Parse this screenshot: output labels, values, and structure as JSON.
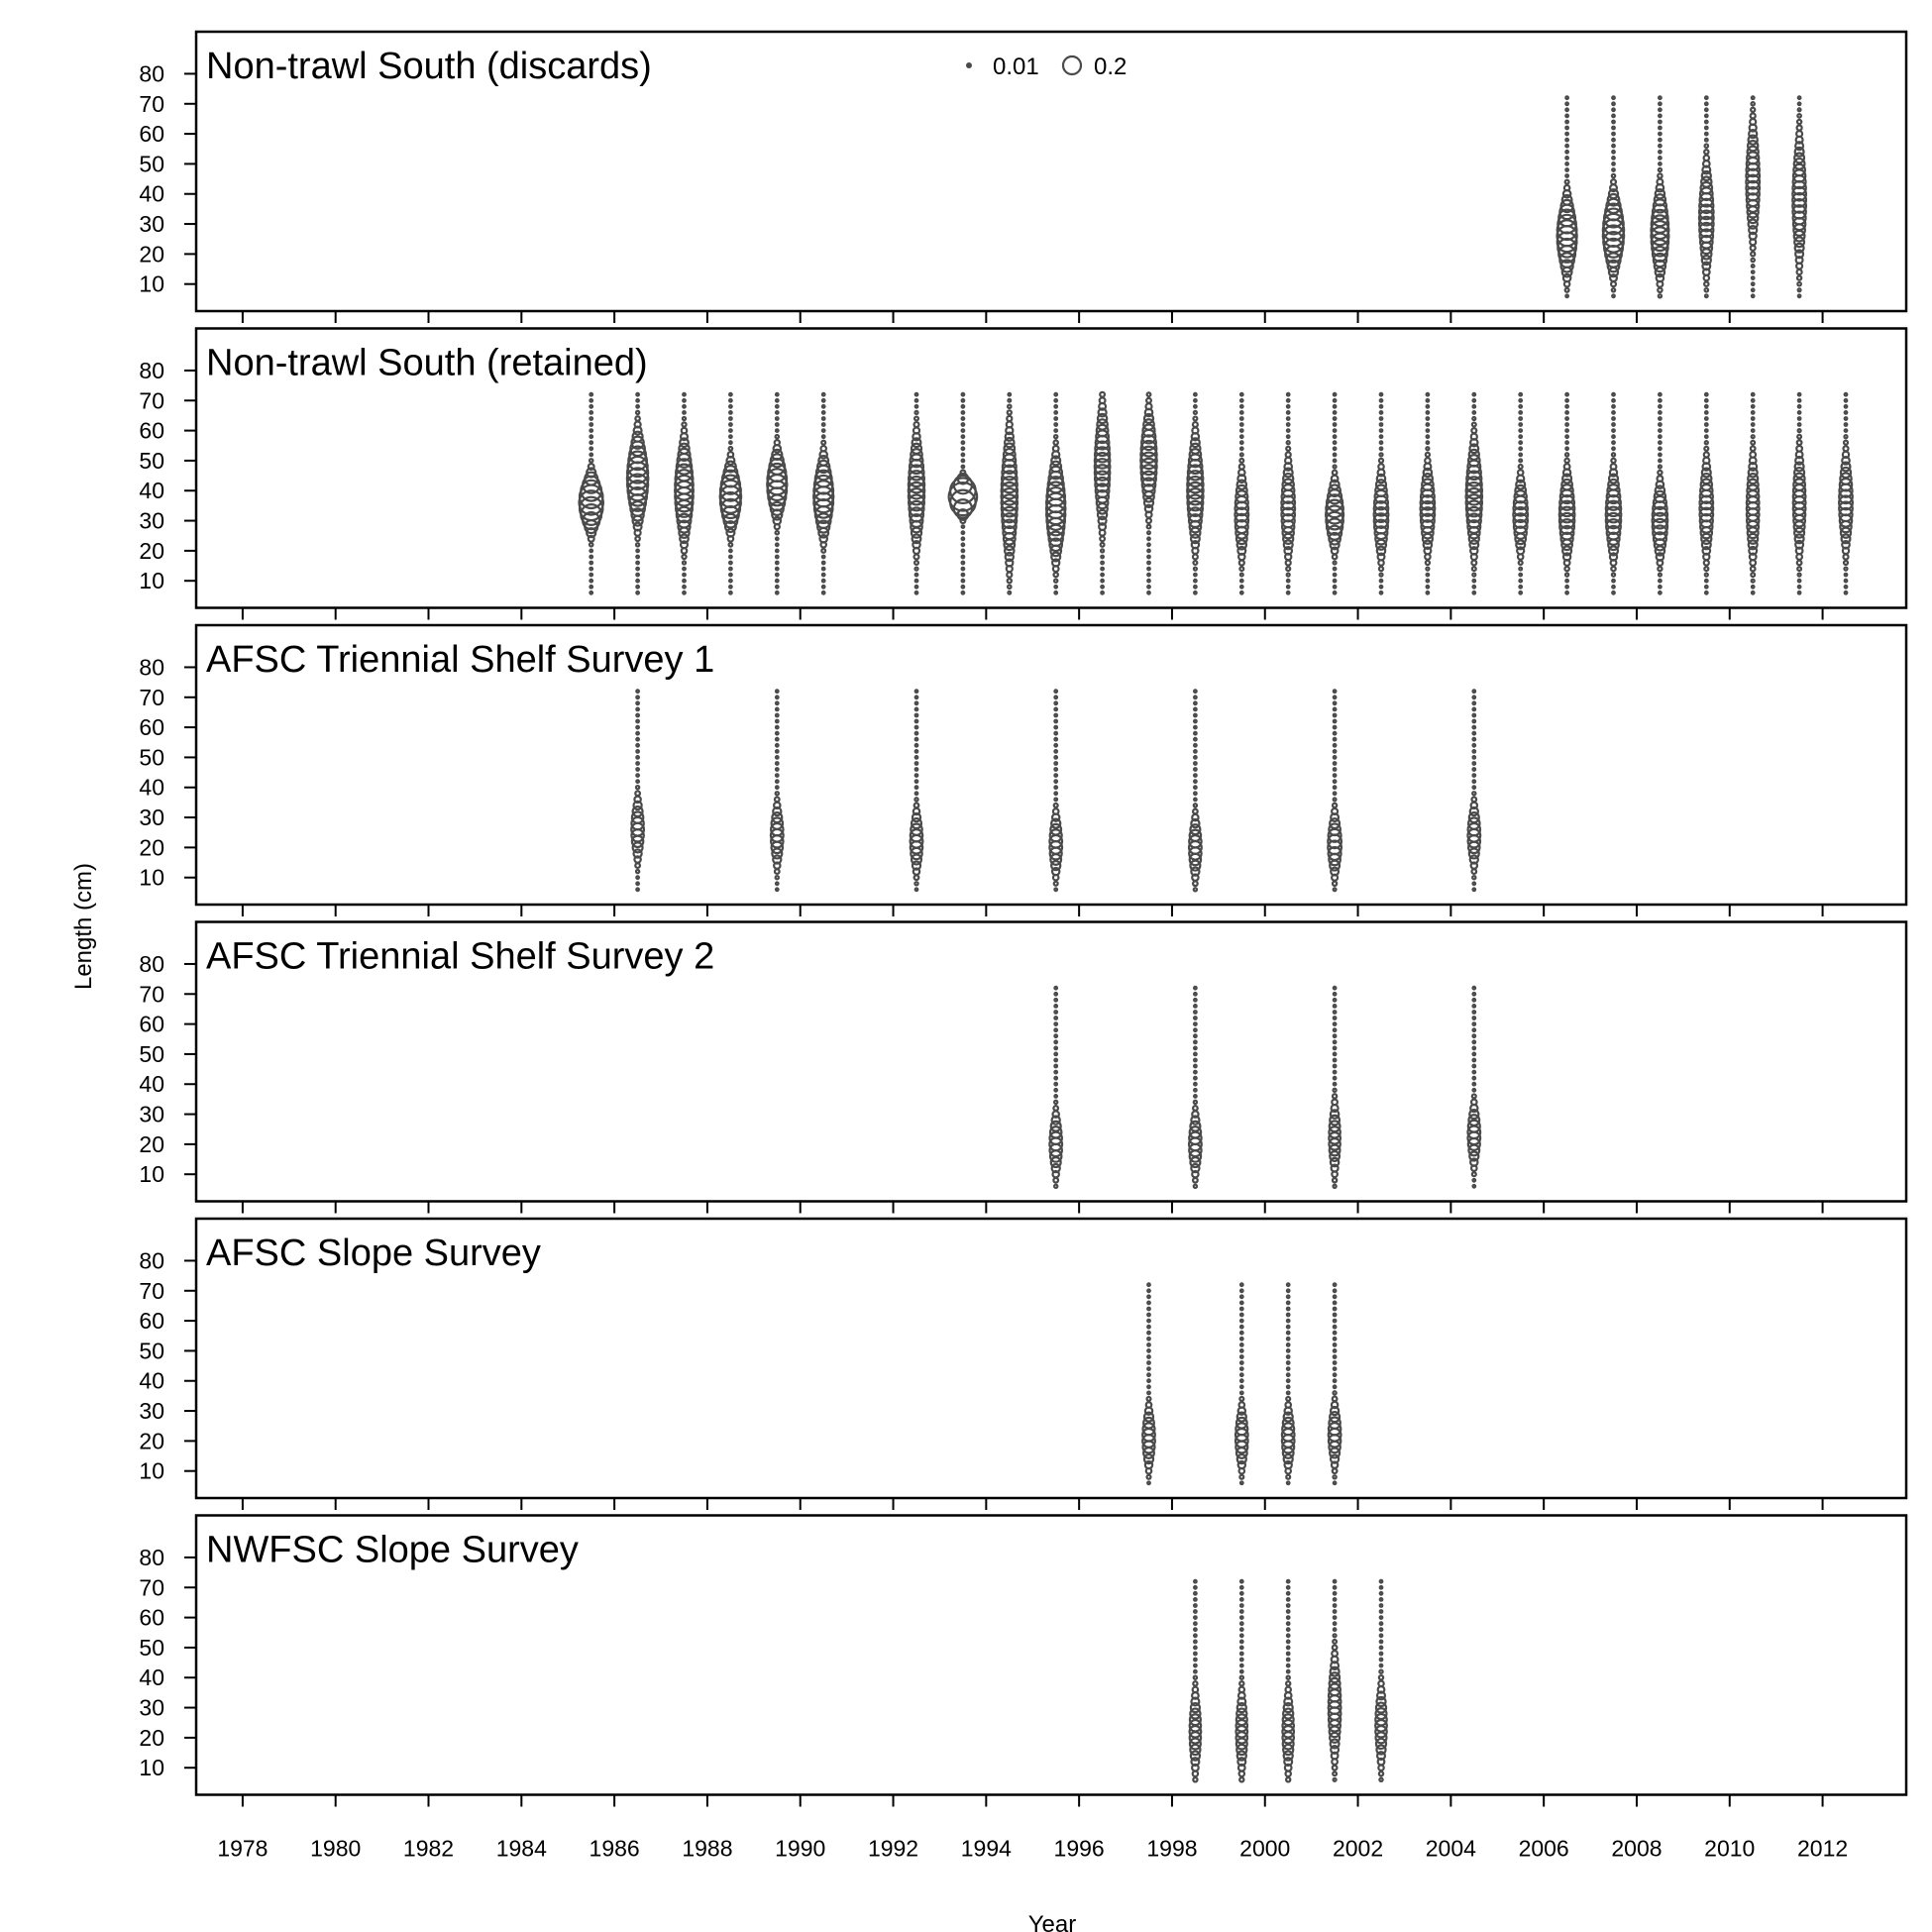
{
  "chart_data": {
    "type": "scatter",
    "subtype": "bubble",
    "xlabel": "Year",
    "ylabel": "Length (cm)",
    "x_ticks": [
      1978,
      1980,
      1982,
      1984,
      1986,
      1988,
      1990,
      1992,
      1994,
      1996,
      1998,
      2000,
      2002,
      2004,
      2006,
      2008,
      2010,
      2012
    ],
    "xlim": [
      1977,
      2013.8
    ],
    "y_ticks": [
      10,
      20,
      30,
      40,
      50,
      60,
      70,
      80
    ],
    "ylim": [
      1,
      94
    ],
    "length_bins": [
      6,
      72
    ],
    "legend": {
      "labels": [
        "0.01",
        "0.2"
      ],
      "values": [
        0.01,
        0.2
      ],
      "position": "top-center"
    },
    "bubble_color": "#4a4a4a",
    "panels": [
      {
        "title": "Non-trawl South (discards)",
        "years": [
          2006,
          2007,
          2008,
          2009,
          2010,
          2011
        ],
        "modes": [
          [
            26,
            7,
            0.15
          ],
          [
            27,
            7,
            0.17
          ],
          [
            27,
            8,
            0.12
          ],
          [
            32,
            10,
            0.08
          ],
          [
            44,
            11,
            0.07
          ],
          [
            38,
            12,
            0.07
          ]
        ]
      },
      {
        "title": "Non-trawl South (retained)",
        "years": [
          1985,
          1986,
          1987,
          1988,
          1989,
          1990,
          1992,
          1993,
          1994,
          1995,
          1996,
          1997,
          1998,
          1999,
          2000,
          2001,
          2002,
          2003,
          2004,
          2005,
          2006,
          2007,
          2008,
          2009,
          2010,
          2011,
          2012
        ],
        "modes": [
          [
            36,
            5,
            0.22
          ],
          [
            44,
            8,
            0.17
          ],
          [
            40,
            9,
            0.13
          ],
          [
            38,
            6,
            0.17
          ],
          [
            42,
            6,
            0.15
          ],
          [
            38,
            7,
            0.15
          ],
          [
            40,
            10,
            0.1
          ],
          [
            38,
            3,
            0.3
          ],
          [
            38,
            12,
            0.1
          ],
          [
            34,
            9,
            0.14
          ],
          [
            48,
            11,
            0.09
          ],
          [
            50,
            9,
            0.1
          ],
          [
            40,
            10,
            0.1
          ],
          [
            32,
            8,
            0.07
          ],
          [
            34,
            9,
            0.07
          ],
          [
            32,
            6,
            0.12
          ],
          [
            32,
            8,
            0.08
          ],
          [
            34,
            8,
            0.08
          ],
          [
            38,
            10,
            0.1
          ],
          [
            32,
            7,
            0.08
          ],
          [
            32,
            8,
            0.09
          ],
          [
            32,
            8,
            0.09
          ],
          [
            30,
            7,
            0.09
          ],
          [
            34,
            9,
            0.07
          ],
          [
            34,
            10,
            0.06
          ],
          [
            36,
            10,
            0.06
          ],
          [
            36,
            9,
            0.07
          ]
        ]
      },
      {
        "title": "AFSC Triennial Shelf Survey 1",
        "years": [
          1986,
          1989,
          1992,
          1995,
          1998,
          2001,
          2004
        ],
        "modes": [
          [
            26,
            6,
            0.06
          ],
          [
            24,
            6,
            0.06
          ],
          [
            22,
            6,
            0.06
          ],
          [
            21,
            6,
            0.06
          ],
          [
            20,
            6,
            0.06
          ],
          [
            21,
            6,
            0.07
          ],
          [
            24,
            6,
            0.06
          ]
        ]
      },
      {
        "title": "AFSC Triennial Shelf Survey 2",
        "years": [
          1995,
          1998,
          2001,
          2004
        ],
        "modes": [
          [
            20,
            6,
            0.06
          ],
          [
            20,
            6,
            0.06
          ],
          [
            22,
            7,
            0.05
          ],
          [
            23,
            6,
            0.06
          ]
        ]
      },
      {
        "title": "AFSC Slope Survey",
        "years": [
          1997,
          1999,
          2000,
          2001
        ],
        "modes": [
          [
            21,
            6,
            0.06
          ],
          [
            21,
            6,
            0.06
          ],
          [
            21,
            6,
            0.06
          ],
          [
            22,
            6,
            0.06
          ]
        ]
      },
      {
        "title": "NWFSC Slope Survey",
        "years": [
          1998,
          1999,
          2000,
          2001,
          2002
        ],
        "modes": [
          [
            22,
            8,
            0.05
          ],
          [
            22,
            8,
            0.05
          ],
          [
            22,
            8,
            0.05
          ],
          [
            30,
            10,
            0.06
          ],
          [
            24,
            8,
            0.05
          ]
        ]
      }
    ]
  }
}
